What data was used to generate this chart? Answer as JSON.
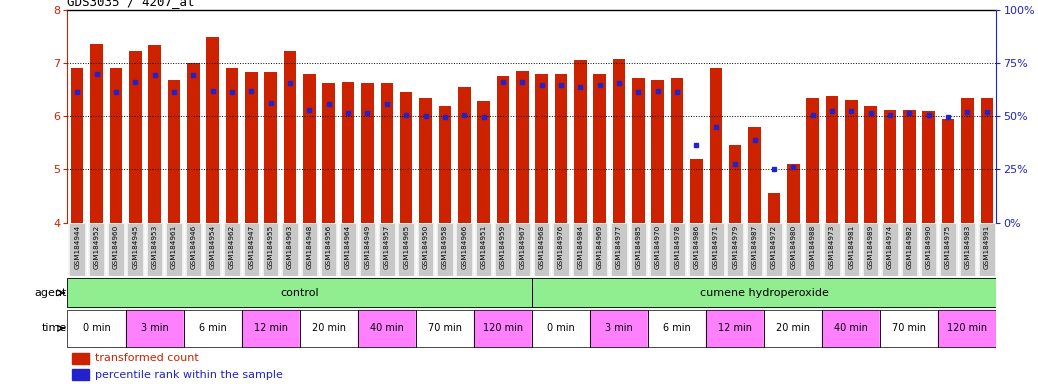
{
  "title": "GDS3035 / 4207_at",
  "samples": [
    "GSM184944",
    "GSM184952",
    "GSM184960",
    "GSM184945",
    "GSM184953",
    "GSM184961",
    "GSM184946",
    "GSM184954",
    "GSM184962",
    "GSM184947",
    "GSM184955",
    "GSM184963",
    "GSM184948",
    "GSM184956",
    "GSM184964",
    "GSM184949",
    "GSM184957",
    "GSM184965",
    "GSM184950",
    "GSM184958",
    "GSM184966",
    "GSM184951",
    "GSM184959",
    "GSM184967",
    "GSM184968",
    "GSM184976",
    "GSM184984",
    "GSM184969",
    "GSM184977",
    "GSM184985",
    "GSM184970",
    "GSM184978",
    "GSM184986",
    "GSM184971",
    "GSM184979",
    "GSM184987",
    "GSM184972",
    "GSM184980",
    "GSM184988",
    "GSM184973",
    "GSM184981",
    "GSM184989",
    "GSM184974",
    "GSM184982",
    "GSM184990",
    "GSM184975",
    "GSM184983",
    "GSM184991"
  ],
  "red_vals": [
    6.9,
    7.35,
    6.9,
    7.22,
    7.33,
    6.68,
    7.0,
    7.48,
    6.9,
    6.82,
    6.82,
    7.22,
    6.8,
    6.62,
    6.64,
    6.62,
    6.62,
    6.45,
    6.35,
    6.2,
    6.55,
    6.28,
    6.75,
    6.85,
    6.8,
    6.8,
    7.05,
    6.8,
    7.08,
    6.72,
    6.68,
    6.72,
    5.2,
    6.9,
    5.45,
    5.8,
    4.55,
    5.1,
    6.35,
    6.38,
    6.3,
    6.2,
    6.12,
    6.12,
    6.1,
    5.95,
    6.35,
    6.35
  ],
  "blue_vals": [
    6.45,
    6.8,
    6.45,
    6.65,
    6.78,
    6.45,
    6.78,
    6.48,
    6.45,
    6.48,
    6.25,
    6.62,
    6.12,
    6.22,
    6.05,
    6.05,
    6.22,
    6.02,
    6.0,
    5.98,
    6.02,
    5.98,
    6.65,
    6.65,
    6.58,
    6.58,
    6.55,
    6.58,
    6.62,
    6.45,
    6.48,
    6.45,
    5.45,
    5.8,
    5.1,
    5.55,
    5.0,
    5.05,
    6.02,
    6.1,
    6.1,
    6.05,
    6.02,
    6.05,
    6.02,
    5.98,
    6.08,
    6.08
  ],
  "ylim": [
    4.0,
    8.0
  ],
  "yticks_left": [
    4,
    5,
    6,
    7,
    8
  ],
  "yticks_right": [
    0,
    25,
    50,
    75,
    100
  ],
  "bar_color": "#CC2200",
  "blue_color": "#2222CC",
  "left_axis_color": "#CC2200",
  "right_axis_color": "#2222CC",
  "agent_color": "#90EE90",
  "agent_labels": [
    "control",
    "cumene hydroperoxide"
  ],
  "agent_starts": [
    0,
    24
  ],
  "agent_ends": [
    24,
    48
  ],
  "time_labels": [
    "0 min",
    "3 min",
    "6 min",
    "12 min",
    "20 min",
    "40 min",
    "70 min",
    "120 min",
    "0 min",
    "3 min",
    "6 min",
    "12 min",
    "20 min",
    "40 min",
    "70 min",
    "120 min"
  ],
  "time_starts": [
    0,
    3,
    6,
    9,
    12,
    15,
    18,
    21,
    24,
    27,
    30,
    33,
    36,
    39,
    42,
    45
  ],
  "time_ends": [
    3,
    6,
    9,
    12,
    15,
    18,
    21,
    24,
    27,
    30,
    33,
    36,
    39,
    42,
    45,
    48
  ],
  "time_colors": [
    "white",
    "#FF80FF",
    "white",
    "#FF80FF",
    "white",
    "#FF80FF",
    "white",
    "#FF80FF",
    "white",
    "#FF80FF",
    "white",
    "#FF80FF",
    "white",
    "#FF80FF",
    "white",
    "#FF80FF"
  ],
  "xtick_bg": "#C8C8C8"
}
